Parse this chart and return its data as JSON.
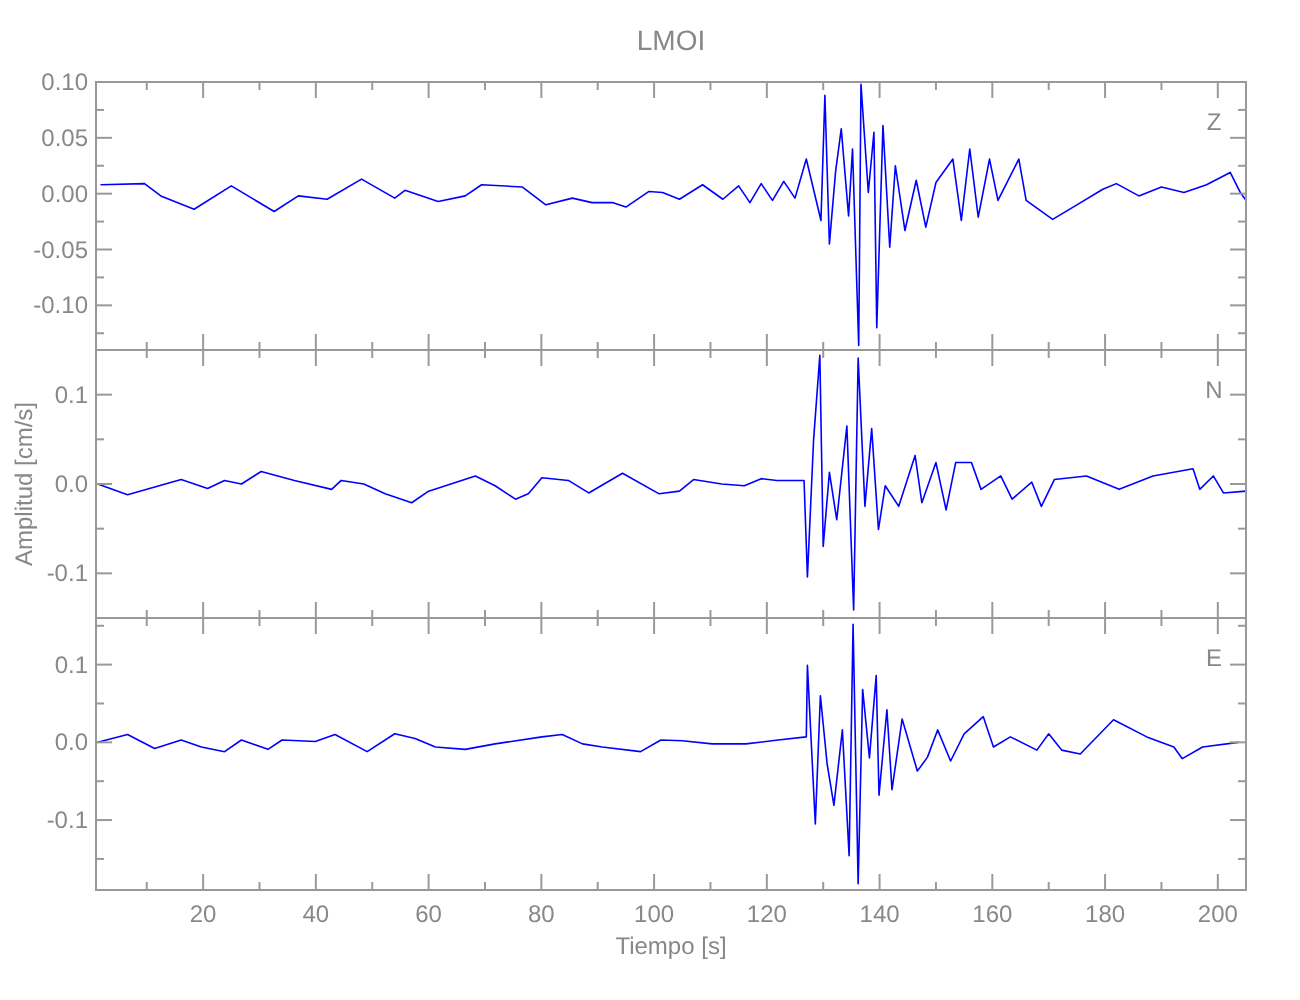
{
  "chart_data": [
    {
      "type": "line",
      "title": "LMOI",
      "xlim": [
        1,
        205
      ],
      "ylim": [
        -0.14,
        0.1
      ],
      "tick_labels": "y",
      "grid": false,
      "marker": "none",
      "line_style": "solid",
      "xticks": [
        {
          "value": 10,
          "label": null
        },
        {
          "value": 20,
          "label": null
        },
        {
          "value": 30,
          "label": null
        },
        {
          "value": 40,
          "label": null
        },
        {
          "value": 50,
          "label": null
        },
        {
          "value": 60,
          "label": null
        },
        {
          "value": 70,
          "label": null
        },
        {
          "value": 80,
          "label": null
        },
        {
          "value": 90,
          "label": null
        },
        {
          "value": 100,
          "label": null
        },
        {
          "value": 110,
          "label": null
        },
        {
          "value": 120,
          "label": null
        },
        {
          "value": 130,
          "label": null
        },
        {
          "value": 140,
          "label": null
        },
        {
          "value": 150,
          "label": null
        },
        {
          "value": 160,
          "label": null
        },
        {
          "value": 170,
          "label": null
        },
        {
          "value": 180,
          "label": null
        },
        {
          "value": 190,
          "label": null
        },
        {
          "value": 200,
          "label": null
        }
      ],
      "yticks": [
        {
          "value": -0.125,
          "label": null
        },
        {
          "value": -0.1,
          "label": "-0.10"
        },
        {
          "value": -0.075,
          "label": null
        },
        {
          "value": -0.05,
          "label": "-0.05"
        },
        {
          "value": -0.025,
          "label": null
        },
        {
          "value": 0,
          "label": "0.00"
        },
        {
          "value": 0.025,
          "label": null
        },
        {
          "value": 0.05,
          "label": "0.05"
        },
        {
          "value": 0.075,
          "label": null
        },
        {
          "value": 0.1,
          "label": "0.10"
        }
      ],
      "series": [
        {
          "name": "Z",
          "color": "#0000ff",
          "x": [
            1.9,
            9.6,
            12.5,
            18.4,
            25,
            32.6,
            36.9,
            42,
            48.1,
            54,
            55.8,
            61.7,
            66.5,
            69.4,
            76.6,
            80.8,
            85.5,
            89,
            92.6,
            95,
            99.1,
            101.5,
            104.5,
            108.6,
            112.2,
            115,
            117,
            119,
            121,
            123,
            125,
            127,
            129.6,
            130.3,
            131.1,
            132.2,
            133.2,
            134.5,
            135.2,
            136.3,
            136.7,
            138,
            139,
            139.5,
            140.6,
            141.8,
            142.8,
            144.5,
            146.5,
            148.2,
            150,
            153,
            154.5,
            156,
            157.5,
            159.5,
            161,
            164.7,
            166,
            170.7,
            175,
            179.6,
            182,
            186,
            190,
            194,
            198,
            202.2,
            204,
            205
          ],
          "values": [
            0.008,
            0.009,
            -0.002,
            -0.014,
            0.007,
            -0.016,
            -0.002,
            -0.005,
            0.013,
            -0.004,
            0.003,
            -0.007,
            -0.002,
            0.008,
            0.006,
            -0.01,
            -0.004,
            -0.008,
            -0.008,
            -0.012,
            0.002,
            0.001,
            -0.005,
            0.008,
            -0.005,
            0.007,
            -0.008,
            0.009,
            -0.006,
            0.011,
            -0.004,
            0.031,
            -0.024,
            0.088,
            -0.045,
            0.02,
            0.058,
            -0.02,
            0.04,
            -0.136,
            0.098,
            0.001,
            0.055,
            -0.12,
            0.061,
            -0.048,
            0.025,
            -0.033,
            0.012,
            -0.03,
            0.01,
            0.031,
            -0.024,
            0.04,
            -0.021,
            0.031,
            -0.006,
            0.031,
            -0.006,
            -0.023,
            -0.01,
            0.004,
            0.009,
            -0.002,
            0.006,
            0.001,
            0.008,
            0.019,
            0.001,
            -0.006
          ]
        }
      ]
    },
    {
      "type": "line",
      "ylabel": "Amplitud [cm/s]",
      "xlim": [
        1,
        205
      ],
      "ylim": [
        -0.15,
        0.15
      ],
      "tick_labels": "y",
      "grid": false,
      "marker": "none",
      "line_style": "solid",
      "xticks": [
        {
          "value": 10,
          "label": null
        },
        {
          "value": 20,
          "label": null
        },
        {
          "value": 30,
          "label": null
        },
        {
          "value": 40,
          "label": null
        },
        {
          "value": 50,
          "label": null
        },
        {
          "value": 60,
          "label": null
        },
        {
          "value": 70,
          "label": null
        },
        {
          "value": 80,
          "label": null
        },
        {
          "value": 90,
          "label": null
        },
        {
          "value": 100,
          "label": null
        },
        {
          "value": 110,
          "label": null
        },
        {
          "value": 120,
          "label": null
        },
        {
          "value": 130,
          "label": null
        },
        {
          "value": 140,
          "label": null
        },
        {
          "value": 150,
          "label": null
        },
        {
          "value": 160,
          "label": null
        },
        {
          "value": 170,
          "label": null
        },
        {
          "value": 180,
          "label": null
        },
        {
          "value": 190,
          "label": null
        },
        {
          "value": 200,
          "label": null
        }
      ],
      "yticks": [
        {
          "value": -0.15,
          "label": null
        },
        {
          "value": -0.1,
          "label": "-0.1"
        },
        {
          "value": -0.05,
          "label": null
        },
        {
          "value": 0,
          "label": "0.0"
        },
        {
          "value": 0.05,
          "label": null
        },
        {
          "value": 0.1,
          "label": "0.1"
        },
        {
          "value": 0.15,
          "label": null
        }
      ],
      "series": [
        {
          "name": "N",
          "color": "#0000ff",
          "x": [
            1.3,
            6.6,
            16.1,
            20.8,
            23.8,
            26.8,
            30.3,
            36.2,
            42.8,
            44.5,
            48.5,
            52.3,
            57,
            60,
            68.3,
            71.8,
            75.4,
            77.7,
            80.1,
            84.8,
            88.4,
            94.4,
            100.9,
            104.5,
            107,
            112,
            116,
            119,
            121.8,
            126.6,
            127.2,
            128.3,
            129.4,
            130,
            131.1,
            132.4,
            134.2,
            135.4,
            136.2,
            137.4,
            138.6,
            139.8,
            141,
            143.4,
            146.3,
            147.5,
            150,
            151.8,
            153.5,
            156.3,
            158,
            161.5,
            163.5,
            167,
            168.7,
            171,
            176.7,
            182.5,
            188.5,
            195.6,
            196.8,
            199.2,
            201,
            205
          ],
          "values": [
            0,
            -0.012,
            0.005,
            -0.005,
            0.004,
            0,
            0.014,
            0.004,
            -0.006,
            0.004,
            0,
            -0.011,
            -0.021,
            -0.008,
            0.009,
            -0.002,
            -0.017,
            -0.011,
            0.007,
            0.004,
            -0.01,
            0.012,
            -0.011,
            -0.008,
            0.005,
            0,
            -0.002,
            0.006,
            0.004,
            0.004,
            -0.104,
            0.05,
            0.144,
            -0.07,
            0.013,
            -0.04,
            0.065,
            -0.141,
            0.141,
            -0.025,
            0.062,
            -0.051,
            -0.002,
            -0.025,
            0.032,
            -0.021,
            0.024,
            -0.029,
            0.024,
            0.024,
            -0.006,
            0.009,
            -0.017,
            0.002,
            -0.025,
            0.005,
            0.009,
            -0.006,
            0.009,
            0.017,
            -0.006,
            0.009,
            -0.01,
            -0.008
          ]
        }
      ]
    },
    {
      "type": "line",
      "xlabel": "Tiempo [s]",
      "xlim": [
        1,
        205
      ],
      "ylim": [
        -0.19,
        0.16
      ],
      "grid": false,
      "marker": "none",
      "line_style": "solid",
      "xticks": [
        {
          "value": 10,
          "label": null
        },
        {
          "value": 20,
          "label": "20"
        },
        {
          "value": 30,
          "label": null
        },
        {
          "value": 40,
          "label": "40"
        },
        {
          "value": 50,
          "label": null
        },
        {
          "value": 60,
          "label": "60"
        },
        {
          "value": 70,
          "label": null
        },
        {
          "value": 80,
          "label": "80"
        },
        {
          "value": 90,
          "label": null
        },
        {
          "value": 100,
          "label": "100"
        },
        {
          "value": 110,
          "label": null
        },
        {
          "value": 120,
          "label": "120"
        },
        {
          "value": 130,
          "label": null
        },
        {
          "value": 140,
          "label": "140"
        },
        {
          "value": 150,
          "label": null
        },
        {
          "value": 160,
          "label": "160"
        },
        {
          "value": 170,
          "label": null
        },
        {
          "value": 180,
          "label": "180"
        },
        {
          "value": 190,
          "label": null
        },
        {
          "value": 200,
          "label": "200"
        }
      ],
      "yticks": [
        {
          "value": -0.15,
          "label": null
        },
        {
          "value": -0.1,
          "label": "-0.1"
        },
        {
          "value": -0.05,
          "label": null
        },
        {
          "value": 0,
          "label": "0.0"
        },
        {
          "value": 0.05,
          "label": null
        },
        {
          "value": 0.1,
          "label": "0.1"
        },
        {
          "value": 0.15,
          "label": null
        }
      ],
      "series": [
        {
          "name": "E",
          "color": "#0000ff",
          "x": [
            1.3,
            6.6,
            11.4,
            16.1,
            19.7,
            23.8,
            26.8,
            31.5,
            34,
            39.9,
            43.4,
            49.1,
            54,
            57.6,
            61.2,
            66.5,
            71.8,
            80.1,
            83.7,
            87.3,
            90.8,
            97.6,
            101.2,
            105,
            110.3,
            116.3,
            122,
            127,
            127.2,
            128.6,
            129.5,
            130.7,
            131.9,
            133.4,
            134.6,
            135.3,
            136.2,
            137,
            138.2,
            139.4,
            139.9,
            141.3,
            142.2,
            144,
            146.7,
            148.5,
            150.3,
            152.6,
            155,
            158.4,
            160.2,
            163.2,
            167.9,
            170,
            172.3,
            175.6,
            181.5,
            187.4,
            192.2,
            193.7,
            197.3,
            203.6
          ],
          "values": [
            0,
            0.01,
            -0.008,
            0.003,
            -0.006,
            -0.012,
            0.003,
            -0.009,
            0.003,
            0.001,
            0.01,
            -0.012,
            0.011,
            0.005,
            -0.006,
            -0.009,
            -0.002,
            0.007,
            0.01,
            -0.002,
            -0.006,
            -0.012,
            0.003,
            0.002,
            -0.002,
            -0.002,
            0.003,
            0.007,
            0.099,
            -0.105,
            0.06,
            -0.028,
            -0.081,
            0.016,
            -0.146,
            0.152,
            -0.182,
            0.068,
            -0.02,
            0.086,
            -0.068,
            0.042,
            -0.061,
            0.03,
            -0.037,
            -0.019,
            0.016,
            -0.024,
            0.011,
            0.033,
            -0.006,
            0.007,
            -0.01,
            0.011,
            -0.01,
            -0.015,
            0.029,
            0.007,
            -0.006,
            -0.021,
            -0.006,
            0
          ]
        }
      ]
    }
  ]
}
